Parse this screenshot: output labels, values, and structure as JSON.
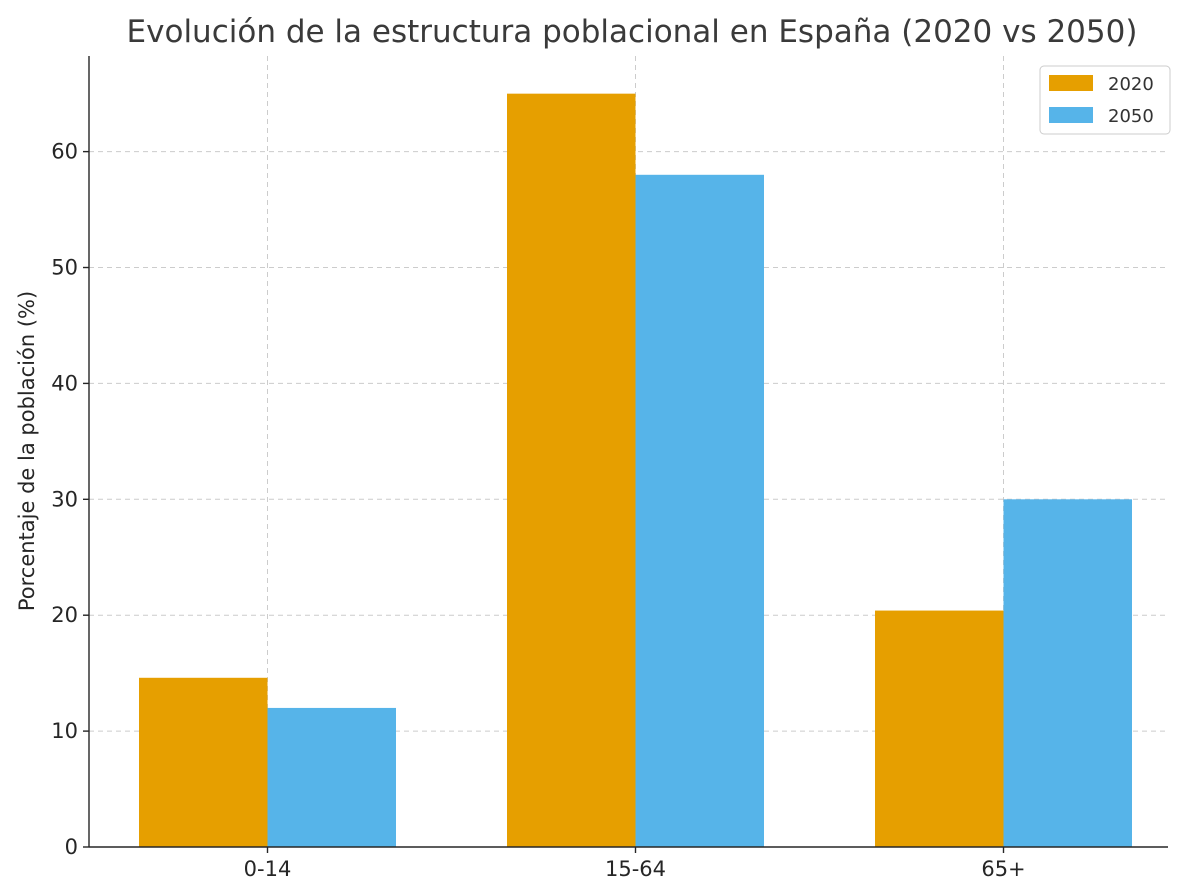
{
  "chart_data": {
    "type": "bar",
    "title": "Evolución de la estructura poblacional en España (2020 vs 2050)",
    "xlabel": "",
    "ylabel": "Porcentaje de la población (%)",
    "categories": [
      "0-14",
      "15-64",
      "65+"
    ],
    "series": [
      {
        "name": "2020",
        "values": [
          14.6,
          65.0,
          20.4
        ],
        "color": "#E69F00"
      },
      {
        "name": "2050",
        "values": [
          12.0,
          58.0,
          30.0
        ],
        "color": "#56B4E9"
      }
    ],
    "yticks": [
      0,
      10,
      20,
      30,
      40,
      50,
      60
    ],
    "ylim": [
      0,
      68.25
    ],
    "grid": true,
    "legend_position": "top-right"
  }
}
